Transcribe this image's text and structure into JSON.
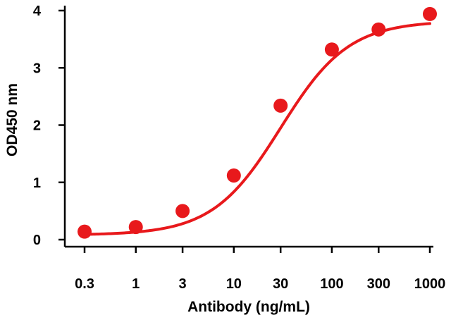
{
  "chart_data": {
    "type": "line",
    "title": "",
    "xlabel": "Antibody (ng/mL)",
    "ylabel": "OD450 nm",
    "x_scale": "log",
    "xlim": [
      0.2,
      1200
    ],
    "ylim": [
      -0.1,
      4.05
    ],
    "x_ticks": [
      0.3,
      1,
      3,
      10,
      30,
      100,
      300,
      1000
    ],
    "x_tick_labels": [
      "0.3",
      "1",
      "3",
      "10",
      "30",
      "100",
      "300",
      "1000"
    ],
    "y_ticks": [
      0,
      1,
      2,
      3,
      4
    ],
    "y_tick_labels": [
      "0",
      "1",
      "2",
      "3",
      "4"
    ],
    "grid": false,
    "color": "#e8191c",
    "series": [
      {
        "points": [
          {
            "x": 0.3,
            "y": 0.14
          },
          {
            "x": 1,
            "y": 0.22
          },
          {
            "x": 3,
            "y": 0.5
          },
          {
            "x": 10,
            "y": 1.12
          },
          {
            "x": 30,
            "y": 2.34
          },
          {
            "x": 100,
            "y": 3.32
          },
          {
            "x": 300,
            "y": 3.67
          },
          {
            "x": 1000,
            "y": 3.94
          }
        ],
        "fit": {
          "model": "4PL",
          "bottom": 0.08,
          "top": 3.82,
          "ec50": 30,
          "hill": 1.25,
          "x_range": [
            0.3,
            1000
          ]
        }
      }
    ]
  }
}
